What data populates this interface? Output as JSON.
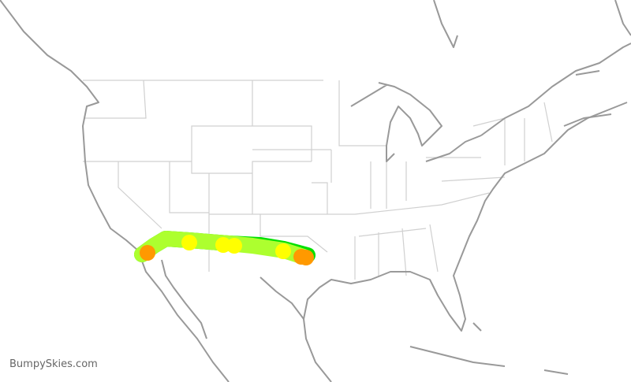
{
  "watermark": "BumpySkies.com",
  "colors": {
    "coastline": "#999999",
    "state_border": "#d0d0d0",
    "route_smooth": "#adff2f",
    "route_light": "#00e000",
    "turbulence_light_moderate": "#ffff00",
    "turbulence_moderate": "#ff9900"
  },
  "route": {
    "markers": [
      {
        "level": "moderate"
      },
      {
        "level": "light-moderate"
      },
      {
        "level": "light-moderate"
      },
      {
        "level": "light-moderate"
      },
      {
        "level": "light-moderate"
      },
      {
        "level": "moderate"
      },
      {
        "level": "moderate"
      }
    ]
  }
}
